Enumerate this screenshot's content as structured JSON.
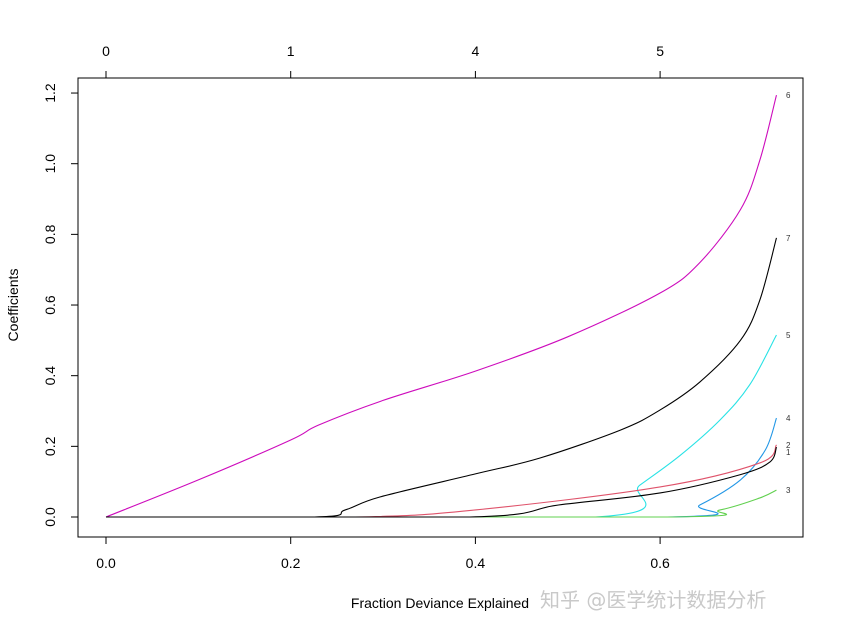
{
  "chart_data": {
    "type": "line",
    "title": "",
    "xlabel": "Fraction Deviance Explained",
    "ylabel": "Coefficients",
    "xlim": [
      0,
      0.73
    ],
    "ylim": [
      0,
      1.2
    ],
    "x_ticks": [
      "0.0",
      "0.2",
      "0.4",
      "0.6"
    ],
    "x_tick_values": [
      0,
      0.2,
      0.4,
      0.6
    ],
    "y_ticks": [
      "0.0",
      "0.2",
      "0.4",
      "0.6",
      "0.8",
      "1.0",
      "1.2"
    ],
    "y_tick_values": [
      0,
      0.2,
      0.4,
      0.6,
      0.8,
      1.0,
      1.2
    ],
    "top_axis_ticks": [
      "0",
      "1",
      "4",
      "5"
    ],
    "grid": false,
    "series": [
      {
        "name": "1",
        "color": "#000000",
        "points": [
          [
            0,
            0
          ],
          [
            0.394,
            0
          ],
          [
            0.49,
            0.034
          ],
          [
            0.6,
            0.068
          ],
          [
            0.687,
            0.12
          ],
          [
            0.719,
            0.156
          ],
          [
            0.726,
            0.198
          ]
        ]
      },
      {
        "name": "2",
        "color": "#DF536B",
        "points": [
          [
            0,
            0
          ],
          [
            0.27,
            0
          ],
          [
            0.4,
            0.02
          ],
          [
            0.6,
            0.085
          ],
          [
            0.708,
            0.153
          ],
          [
            0.726,
            0.204
          ]
        ]
      },
      {
        "name": "3",
        "color": "#61D04F",
        "points": [
          [
            0,
            0
          ],
          [
            0.608,
            0
          ],
          [
            0.665,
            0.02
          ],
          [
            0.708,
            0.054
          ],
          [
            0.726,
            0.076
          ]
        ]
      },
      {
        "name": "4",
        "color": "#2297E6",
        "points": [
          [
            0,
            0
          ],
          [
            0.608,
            0
          ],
          [
            0.643,
            0.034
          ],
          [
            0.687,
            0.105
          ],
          [
            0.714,
            0.19
          ],
          [
            0.726,
            0.28
          ]
        ]
      },
      {
        "name": "5",
        "color": "#28E2E5",
        "points": [
          [
            0,
            0
          ],
          [
            0.53,
            0
          ],
          [
            0.578,
            0.09
          ],
          [
            0.622,
            0.175
          ],
          [
            0.665,
            0.275
          ],
          [
            0.697,
            0.374
          ],
          [
            0.726,
            0.515
          ]
        ]
      },
      {
        "name": "6",
        "color": "#CD0BBC",
        "points": [
          [
            0,
            0
          ],
          [
            0.1,
            0.105
          ],
          [
            0.2,
            0.218
          ],
          [
            0.23,
            0.26
          ],
          [
            0.3,
            0.33
          ],
          [
            0.4,
            0.413
          ],
          [
            0.5,
            0.51
          ],
          [
            0.6,
            0.634
          ],
          [
            0.643,
            0.72
          ],
          [
            0.687,
            0.87
          ],
          [
            0.708,
            1.01
          ],
          [
            0.726,
            1.194
          ]
        ]
      },
      {
        "name": "7",
        "color": "#000000",
        "points": [
          [
            0,
            0
          ],
          [
            0.226,
            0
          ],
          [
            0.259,
            0.02
          ],
          [
            0.297,
            0.057
          ],
          [
            0.4,
            0.122
          ],
          [
            0.47,
            0.167
          ],
          [
            0.557,
            0.246
          ],
          [
            0.6,
            0.303
          ],
          [
            0.643,
            0.382
          ],
          [
            0.687,
            0.5
          ],
          [
            0.708,
            0.614
          ],
          [
            0.726,
            0.79
          ]
        ]
      }
    ]
  },
  "watermark": "知乎 @医学统计数据分析"
}
